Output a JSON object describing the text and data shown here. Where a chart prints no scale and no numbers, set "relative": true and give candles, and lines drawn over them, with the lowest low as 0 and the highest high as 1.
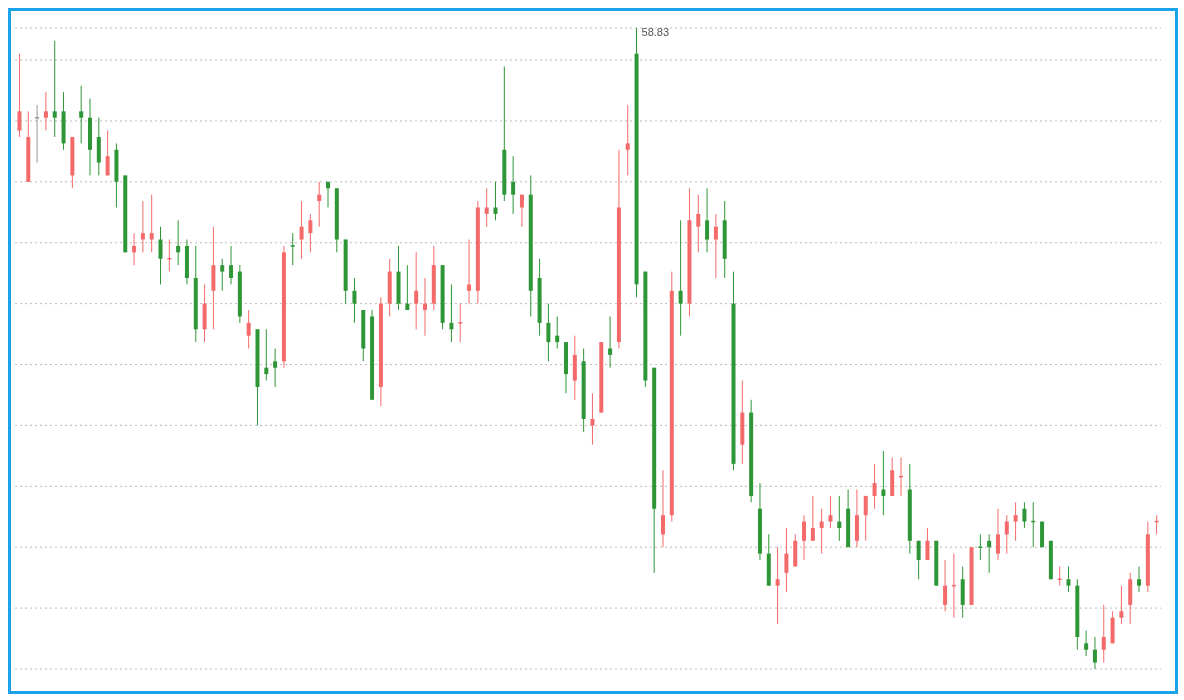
{
  "chart_data": {
    "type": "candlestick",
    "relative": true,
    "grid": "y",
    "categories": [
      null,
      null,
      null,
      null,
      null,
      null,
      null,
      null,
      null,
      null,
      null,
      null,
      null,
      null,
      null,
      null,
      null,
      null,
      null,
      null,
      null,
      null,
      null,
      null,
      null,
      null,
      null,
      null,
      null,
      null,
      null,
      null,
      null,
      null,
      null,
      null,
      null,
      null,
      null,
      null,
      null,
      null,
      null,
      null,
      null,
      null,
      null,
      null,
      null,
      null,
      null,
      null,
      null,
      null,
      null,
      null,
      null,
      null,
      null,
      null,
      null,
      null,
      null,
      null,
      null,
      null,
      null,
      null,
      null,
      null,
      null,
      null,
      null,
      null,
      null,
      null,
      null,
      null,
      null,
      null,
      null,
      null,
      null,
      null,
      null,
      null,
      null,
      null,
      null,
      null,
      null,
      null,
      null,
      null,
      null,
      null,
      null,
      null,
      null,
      null,
      null,
      null,
      null,
      null,
      null,
      null,
      null,
      null,
      null,
      null,
      null,
      null,
      null,
      null,
      null,
      null,
      null,
      null,
      null,
      null,
      null,
      null,
      null,
      null,
      null,
      null,
      null,
      null,
      null,
      null
    ],
    "ohlc": [
      [
        0.84,
        0.96,
        0.83,
        0.87
      ],
      [
        0.76,
        0.87,
        0.76,
        0.83
      ],
      [
        0.86,
        0.88,
        0.79,
        0.86
      ],
      [
        0.86,
        0.9,
        0.84,
        0.87
      ],
      [
        0.87,
        0.98,
        0.83,
        0.86
      ],
      [
        0.87,
        0.9,
        0.81,
        0.82
      ],
      [
        0.77,
        0.83,
        0.75,
        0.83
      ],
      [
        0.87,
        0.91,
        0.82,
        0.86
      ],
      [
        0.86,
        0.89,
        0.77,
        0.81
      ],
      [
        0.83,
        0.86,
        0.77,
        0.79
      ],
      [
        0.77,
        0.84,
        0.77,
        0.8
      ],
      [
        0.81,
        0.82,
        0.72,
        0.76
      ],
      [
        0.77,
        0.77,
        0.65,
        0.65
      ],
      [
        0.65,
        0.68,
        0.63,
        0.66
      ],
      [
        0.67,
        0.73,
        0.65,
        0.68
      ],
      [
        0.67,
        0.74,
        0.65,
        0.68
      ],
      [
        0.67,
        0.69,
        0.6,
        0.64
      ],
      [
        0.64,
        0.67,
        0.62,
        0.64
      ],
      [
        0.66,
        0.7,
        0.63,
        0.65
      ],
      [
        0.66,
        0.67,
        0.6,
        0.61
      ],
      [
        0.61,
        0.66,
        0.51,
        0.53
      ],
      [
        0.53,
        0.6,
        0.51,
        0.57
      ],
      [
        0.59,
        0.69,
        0.53,
        0.63
      ],
      [
        0.63,
        0.64,
        0.59,
        0.62
      ],
      [
        0.63,
        0.66,
        0.6,
        0.61
      ],
      [
        0.62,
        0.63,
        0.54,
        0.55
      ],
      [
        0.52,
        0.56,
        0.5,
        0.54
      ],
      [
        0.53,
        0.53,
        0.38,
        0.44
      ],
      [
        0.47,
        0.53,
        0.45,
        0.46
      ],
      [
        0.48,
        0.5,
        0.44,
        0.47
      ],
      [
        0.48,
        0.66,
        0.47,
        0.65
      ],
      [
        0.66,
        0.68,
        0.63,
        0.66
      ],
      [
        0.67,
        0.73,
        0.64,
        0.69
      ],
      [
        0.68,
        0.71,
        0.65,
        0.7
      ],
      [
        0.73,
        0.76,
        0.69,
        0.74
      ],
      [
        0.76,
        0.76,
        0.72,
        0.75
      ],
      [
        0.75,
        0.75,
        0.65,
        0.67
      ],
      [
        0.67,
        0.67,
        0.57,
        0.59
      ],
      [
        0.59,
        0.61,
        0.54,
        0.57
      ],
      [
        0.56,
        0.56,
        0.48,
        0.5
      ],
      [
        0.55,
        0.56,
        0.42,
        0.42
      ],
      [
        0.44,
        0.58,
        0.41,
        0.57
      ],
      [
        0.57,
        0.64,
        0.55,
        0.62
      ],
      [
        0.62,
        0.66,
        0.56,
        0.57
      ],
      [
        0.57,
        0.63,
        0.56,
        0.56
      ],
      [
        0.57,
        0.65,
        0.53,
        0.59
      ],
      [
        0.56,
        0.61,
        0.52,
        0.57
      ],
      [
        0.57,
        0.66,
        0.56,
        0.63
      ],
      [
        0.63,
        0.63,
        0.53,
        0.54
      ],
      [
        0.54,
        0.6,
        0.51,
        0.53
      ],
      [
        0.54,
        0.57,
        0.51,
        0.54
      ],
      [
        0.59,
        0.67,
        0.57,
        0.6
      ],
      [
        0.59,
        0.73,
        0.57,
        0.72
      ],
      [
        0.71,
        0.75,
        0.69,
        0.72
      ],
      [
        0.72,
        0.76,
        0.7,
        0.71
      ],
      [
        0.81,
        0.94,
        0.73,
        0.74
      ],
      [
        0.76,
        0.8,
        0.71,
        0.74
      ],
      [
        0.72,
        0.74,
        0.69,
        0.74
      ],
      [
        0.74,
        0.77,
        0.55,
        0.59
      ],
      [
        0.61,
        0.64,
        0.52,
        0.54
      ],
      [
        0.54,
        0.57,
        0.48,
        0.51
      ],
      [
        0.52,
        0.55,
        0.5,
        0.51
      ],
      [
        0.51,
        0.51,
        0.43,
        0.46
      ],
      [
        0.45,
        0.52,
        0.42,
        0.49
      ],
      [
        0.48,
        0.5,
        0.37,
        0.39
      ],
      [
        0.38,
        0.43,
        0.35,
        0.39
      ],
      [
        0.4,
        0.51,
        0.4,
        0.51
      ],
      [
        0.5,
        0.55,
        0.47,
        0.49
      ],
      [
        0.51,
        0.81,
        0.5,
        0.72
      ],
      [
        0.81,
        0.88,
        0.77,
        0.82
      ],
      [
        0.96,
        1,
        0.58,
        0.6
      ],
      [
        0.62,
        0.62,
        0.44,
        0.45
      ],
      [
        0.47,
        0.47,
        0.15,
        0.25
      ],
      [
        0.21,
        0.31,
        0.19,
        0.24
      ],
      [
        0.24,
        0.62,
        0.23,
        0.59
      ],
      [
        0.59,
        0.7,
        0.52,
        0.57
      ],
      [
        0.57,
        0.75,
        0.55,
        0.7
      ],
      [
        0.69,
        0.74,
        0.65,
        0.71
      ],
      [
        0.7,
        0.75,
        0.65,
        0.67
      ],
      [
        0.67,
        0.71,
        0.61,
        0.69
      ],
      [
        0.7,
        0.73,
        0.61,
        0.64
      ],
      [
        0.57,
        0.62,
        0.31,
        0.32
      ],
      [
        0.35,
        0.45,
        0.32,
        0.4
      ],
      [
        0.4,
        0.42,
        0.26,
        0.27
      ],
      [
        0.25,
        0.29,
        0.17,
        0.18
      ],
      [
        0.18,
        0.21,
        0.13,
        0.13
      ],
      [
        0.13,
        0.19,
        0.07,
        0.14
      ],
      [
        0.15,
        0.22,
        0.12,
        0.18
      ],
      [
        0.16,
        0.21,
        0.16,
        0.2
      ],
      [
        0.2,
        0.24,
        0.17,
        0.23
      ],
      [
        0.2,
        0.27,
        0.2,
        0.22
      ],
      [
        0.22,
        0.25,
        0.18,
        0.23
      ],
      [
        0.23,
        0.27,
        0.22,
        0.24
      ],
      [
        0.23,
        0.27,
        0.2,
        0.22
      ],
      [
        0.25,
        0.28,
        0.19,
        0.19
      ],
      [
        0.2,
        0.28,
        0.19,
        0.24
      ],
      [
        0.24,
        0.27,
        0.2,
        0.27
      ],
      [
        0.27,
        0.32,
        0.25,
        0.29
      ],
      [
        0.28,
        0.34,
        0.24,
        0.27
      ],
      [
        0.27,
        0.33,
        0.27,
        0.31
      ],
      [
        0.3,
        0.33,
        0.27,
        0.3
      ],
      [
        0.28,
        0.32,
        0.18,
        0.2
      ],
      [
        0.2,
        0.2,
        0.14,
        0.17
      ],
      [
        0.17,
        0.22,
        0.17,
        0.2
      ],
      [
        0.2,
        0.2,
        0.13,
        0.13
      ],
      [
        0.1,
        0.17,
        0.09,
        0.13
      ],
      [
        0.13,
        0.18,
        0.08,
        0.13
      ],
      [
        0.14,
        0.16,
        0.08,
        0.1
      ],
      [
        0.1,
        0.19,
        0.1,
        0.19
      ],
      [
        0.19,
        0.21,
        0.17,
        0.19
      ],
      [
        0.2,
        0.21,
        0.15,
        0.19
      ],
      [
        0.18,
        0.25,
        0.17,
        0.21
      ],
      [
        0.21,
        0.24,
        0.18,
        0.23
      ],
      [
        0.23,
        0.26,
        0.2,
        0.24
      ],
      [
        0.25,
        0.26,
        0.22,
        0.23
      ],
      [
        0.23,
        0.26,
        0.19,
        0.23
      ],
      [
        0.23,
        0.23,
        0.19,
        0.19
      ],
      [
        0.2,
        0.2,
        0.14,
        0.14
      ],
      [
        0.14,
        0.16,
        0.13,
        0.14
      ],
      [
        0.14,
        0.16,
        0.12,
        0.13
      ],
      [
        0.13,
        0.14,
        0.03,
        0.05
      ],
      [
        0.04,
        0.06,
        0.02,
        0.03
      ],
      [
        0.03,
        0.05,
        0,
        0.01
      ],
      [
        0.03,
        0.1,
        0.01,
        0.05
      ],
      [
        0.04,
        0.09,
        0.04,
        0.08
      ],
      [
        0.08,
        0.13,
        0.07,
        0.09
      ],
      [
        0.1,
        0.15,
        0.07,
        0.14
      ],
      [
        0.14,
        0.16,
        0.12,
        0.13
      ],
      [
        0.13,
        0.23,
        0.12,
        0.21
      ],
      [
        0.23,
        0.24,
        0.21,
        0.23
      ]
    ],
    "colors": [
      "#f46a6a",
      "#f46a6a",
      "#999999",
      "#f46a6a",
      "#2f9637",
      "#2f9637",
      "#f46a6a",
      "#2f9637",
      "#2f9637",
      "#2f9637",
      "#f46a6a",
      "#2f9637",
      "#2f9637",
      "#f46a6a",
      "#f46a6a",
      "#f46a6a",
      "#2f9637",
      "#f46a6a",
      "#2f9637",
      "#2f9637",
      "#2f9637",
      "#f46a6a",
      "#f46a6a",
      "#2f9637",
      "#2f9637",
      "#2f9637",
      "#f46a6a",
      "#2f9637",
      "#2f9637",
      "#2f9637",
      "#f46a6a",
      "#2f9637",
      "#f46a6a",
      "#f46a6a",
      "#f46a6a",
      "#2f9637",
      "#2f9637",
      "#2f9637",
      "#2f9637",
      "#2f9637",
      "#2f9637",
      "#f46a6a",
      "#f46a6a",
      "#2f9637",
      "#2f9637",
      "#f46a6a",
      "#f46a6a",
      "#f46a6a",
      "#2f9637",
      "#2f9637",
      "#f46a6a",
      "#f46a6a",
      "#f46a6a",
      "#f46a6a",
      "#2f9637",
      "#2f9637",
      "#2f9637",
      "#f46a6a",
      "#2f9637",
      "#2f9637",
      "#2f9637",
      "#2f9637",
      "#2f9637",
      "#f46a6a",
      "#2f9637",
      "#f46a6a",
      "#f46a6a",
      "#2f9637",
      "#f46a6a",
      "#f46a6a",
      "#2f9637",
      "#2f9637",
      "#2f9637",
      "#f46a6a",
      "#f46a6a",
      "#2f9637",
      "#f46a6a",
      "#f46a6a",
      "#2f9637",
      "#f46a6a",
      "#2f9637",
      "#2f9637",
      "#f46a6a",
      "#2f9637",
      "#2f9637",
      "#2f9637",
      "#f46a6a",
      "#f46a6a",
      "#f46a6a",
      "#f46a6a",
      "#f46a6a",
      "#f46a6a",
      "#f46a6a",
      "#2f9637",
      "#2f9637",
      "#f46a6a",
      "#f46a6a",
      "#f46a6a",
      "#2f9637",
      "#f46a6a",
      "#f46a6a",
      "#2f9637",
      "#2f9637",
      "#f46a6a",
      "#2f9637",
      "#f46a6a",
      "#f46a6a",
      "#2f9637",
      "#f46a6a",
      "#2f9637",
      "#2f9637",
      "#f46a6a",
      "#f46a6a",
      "#f46a6a",
      "#2f9637",
      "#2f9637",
      "#2f9637",
      "#2f9637",
      "#f46a6a",
      "#2f9637",
      "#2f9637",
      "#2f9637",
      "#2f9637",
      "#f46a6a",
      "#f46a6a",
      "#f46a6a",
      "#f46a6a",
      "#2f9637",
      "#f46a6a",
      "#f46a6a"
    ],
    "annotations": [
      "58.83"
    ]
  }
}
